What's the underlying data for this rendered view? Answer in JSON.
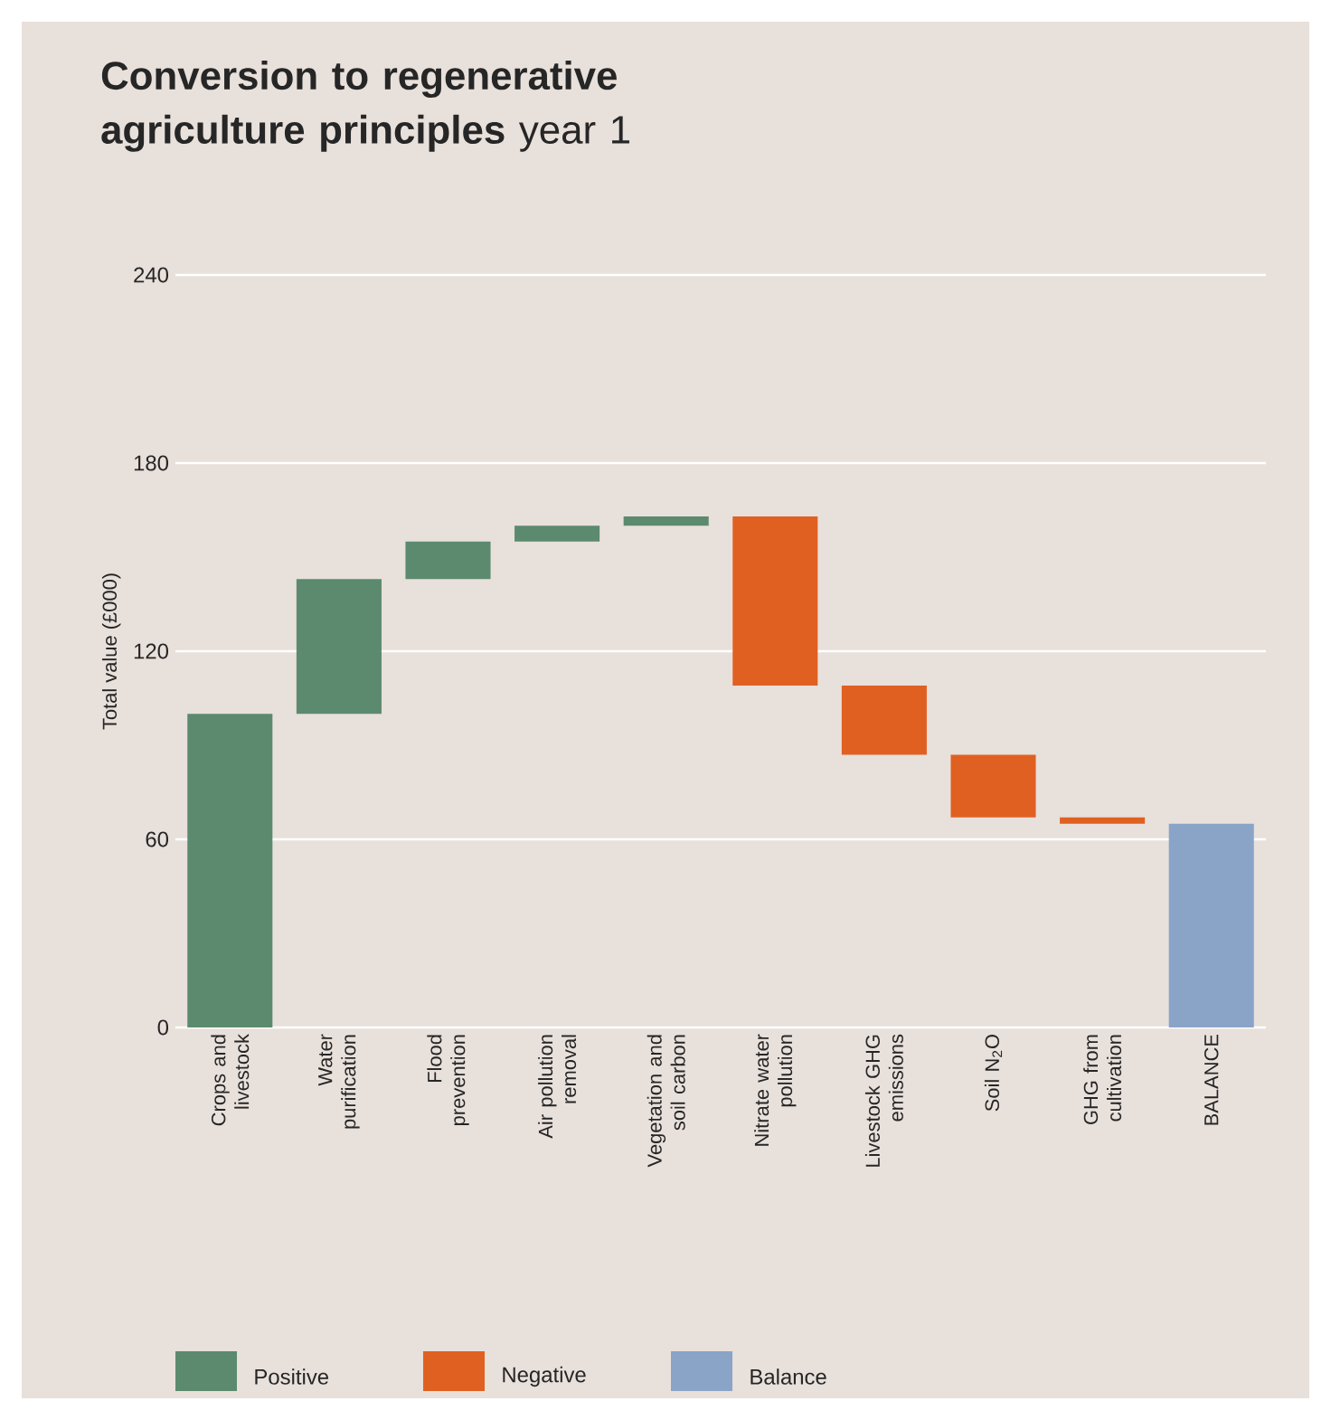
{
  "chart_data": {
    "type": "bar",
    "title": "**Conversion to regenerative agriculture principles** year 1",
    "ylabel": "Total value (£000)",
    "categories": [
      "Crops and livestock",
      "Water purification",
      "Flood prevention",
      "Air pollution removal",
      "Vegetation and soil carbon",
      "Nitrate water pollution",
      "Livestock GHG emissions",
      "Soil N$_{2}$O",
      "GHG from cultivation",
      "BALANCE"
    ],
    "series": [
      {
        "name": "Positive",
        "color": "#5b8a6e",
        "base": [
          0,
          100,
          143,
          155,
          160,
          null,
          null,
          null,
          null,
          null
        ],
        "values": [
          100,
          43,
          12,
          5,
          3,
          null,
          null,
          null,
          null,
          null
        ]
      },
      {
        "name": "Negative",
        "color": "#e06022",
        "base": [
          null,
          null,
          null,
          null,
          null,
          163,
          109,
          87,
          67,
          null
        ],
        "values": [
          null,
          null,
          null,
          null,
          null,
          -54,
          -22,
          -20,
          -2,
          null
        ]
      },
      {
        "name": "Balance",
        "color": "#8aa4c8",
        "base": [
          null,
          null,
          null,
          null,
          null,
          null,
          null,
          null,
          null,
          0
        ],
        "values": [
          null,
          null,
          null,
          null,
          null,
          null,
          null,
          null,
          null,
          65
        ]
      }
    ],
    "ylim": [
      0,
      240
    ],
    "yticks": [
      0,
      60,
      120,
      180,
      240
    ],
    "grid": "y",
    "legend": "bottom"
  }
}
